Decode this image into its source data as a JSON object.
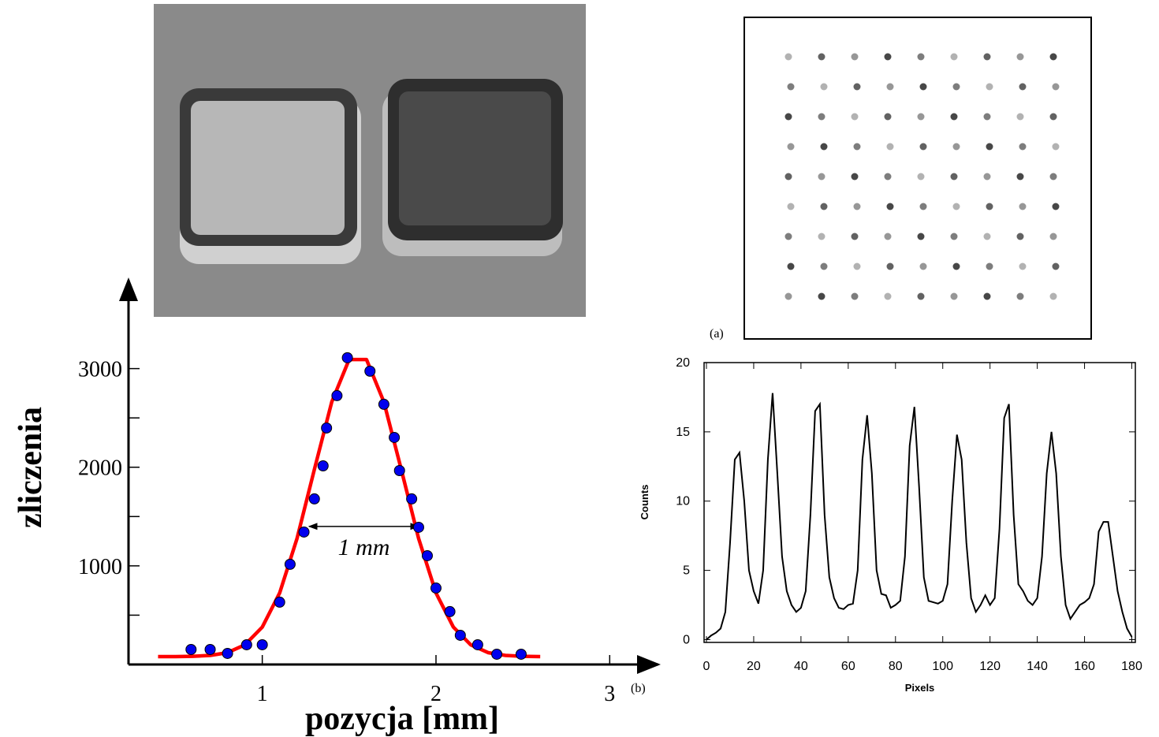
{
  "chart_data": [
    {
      "type": "scatter",
      "ylabel": "zliczenia",
      "xlabel": "pozycja [mm]",
      "xlim": [
        0.23,
        3.28
      ],
      "ylim": [
        0,
        3900
      ],
      "xticks": [
        1,
        2,
        3
      ],
      "yticks": [
        1000,
        2000,
        3000
      ],
      "yminor_ticks": [
        500,
        1500,
        2500
      ],
      "points": {
        "color": "#0000ee",
        "x": [
          0.59,
          0.7,
          0.8,
          0.91,
          1.0,
          1.1,
          1.16,
          1.24,
          1.3,
          1.35,
          1.37,
          1.43,
          1.49,
          1.62,
          1.7,
          1.76,
          1.79,
          1.86,
          1.9,
          1.95,
          2.0,
          2.08,
          2.14,
          2.24,
          2.35,
          2.49
        ],
        "values": [
          152,
          152,
          112,
          200,
          200,
          632,
          1016,
          1343,
          1679,
          2014,
          2398,
          2726,
          3110,
          2974,
          2638,
          2302,
          1966,
          1679,
          1391,
          1103,
          775,
          536,
          296,
          200,
          104,
          104
        ]
      },
      "fit": {
        "color": "#ff0000",
        "x": [
          0.4,
          0.5,
          0.6,
          0.7,
          0.8,
          0.9,
          1.0,
          1.1,
          1.2,
          1.3,
          1.4,
          1.5,
          1.6,
          1.7,
          1.8,
          1.9,
          2.0,
          2.1,
          2.2,
          2.3,
          2.4,
          2.5,
          2.6
        ],
        "values": [
          80,
          80,
          83,
          92,
          120,
          199,
          379,
          725,
          1277,
          1978,
          2662,
          3092,
          3092,
          2662,
          1978,
          1277,
          725,
          379,
          199,
          120,
          92,
          83,
          80
        ]
      },
      "annotations": [
        {
          "text": "1 mm",
          "x": [
            1.27,
            1.9
          ],
          "y": 1400
        },
        {
          "text": "(b)"
        }
      ]
    },
    {
      "type": "line",
      "ylabel": "Counts",
      "xlabel": "Pixels",
      "image_label": "(a)",
      "xlim": [
        -1,
        181.5
      ],
      "ylim": [
        -0.2,
        20
      ],
      "xticks": [
        0,
        20,
        40,
        60,
        80,
        100,
        120,
        140,
        160,
        180
      ],
      "yticks": [
        0,
        5,
        10,
        15,
        20
      ],
      "color": "#000000",
      "x": [
        0,
        2,
        4,
        6,
        8,
        10,
        12,
        14,
        16,
        18,
        20,
        22,
        24,
        26,
        28,
        30,
        32,
        34,
        36,
        38,
        40,
        42,
        44,
        46,
        48,
        50,
        52,
        54,
        56,
        58,
        60,
        62,
        64,
        66,
        68,
        70,
        72,
        74,
        76,
        78,
        80,
        82,
        84,
        86,
        88,
        90,
        92,
        94,
        96,
        98,
        100,
        102,
        104,
        106,
        108,
        110,
        112,
        114,
        116,
        118,
        120,
        122,
        124,
        126,
        128,
        130,
        132,
        134,
        136,
        138,
        140,
        142,
        144,
        146,
        148,
        150,
        152,
        154,
        156,
        158,
        160,
        162,
        164,
        166,
        168,
        170,
        172,
        174,
        176,
        178,
        180
      ],
      "values": [
        0,
        0.3,
        0.5,
        0.8,
        2,
        7,
        13,
        13.5,
        10,
        5,
        3.5,
        2.6,
        5,
        13,
        17.8,
        12,
        6,
        3.5,
        2.5,
        2,
        2.3,
        3.5,
        9,
        16.5,
        17,
        9,
        4.5,
        3,
        2.3,
        2.2,
        2.5,
        2.6,
        5,
        13,
        16.2,
        12,
        5,
        3.3,
        3.2,
        2.3,
        2.5,
        2.8,
        6,
        14,
        16.8,
        11,
        4.5,
        2.8,
        2.7,
        2.6,
        2.8,
        4,
        10,
        14.8,
        13,
        7,
        3,
        2,
        2.5,
        3.2,
        2.5,
        3,
        8,
        16,
        17,
        9,
        4,
        3.5,
        2.8,
        2.5,
        3,
        6,
        12,
        15,
        12,
        6,
        2.5,
        1.5,
        2,
        2.5,
        2.7,
        3,
        4,
        7.8,
        8.5,
        8.5,
        6,
        3.5,
        2,
        0.8,
        0.2
      ]
    }
  ]
}
